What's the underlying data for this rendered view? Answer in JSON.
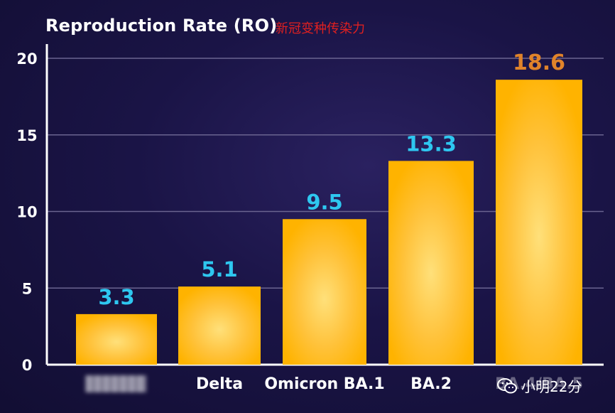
{
  "chart_data": {
    "type": "bar",
    "title": "Reproduction Rate (RO)",
    "subtitle": "新冠变种传染力",
    "categories": [
      "",
      "Delta",
      "Omicron BA.1",
      "BA.2",
      "BA.4/BA.5"
    ],
    "values": [
      3.3,
      5.1,
      9.5,
      13.3,
      18.6
    ],
    "value_labels": [
      "3.3",
      "5.1",
      "9.5",
      "13.3",
      "18.6"
    ],
    "xlabel": "",
    "ylabel": "",
    "ylim": [
      0,
      20
    ],
    "yticks": [
      0,
      5,
      10,
      15,
      20
    ],
    "grid": true,
    "legend": "none",
    "colors": {
      "bar": "#ffb300",
      "bar_glow": "#ffe07a",
      "value_label": "#2ec7f0",
      "highlight_label": "#e0832a",
      "axis": "#ffffff",
      "grid": "#6a6490"
    }
  },
  "watermark": {
    "icon": "wechat-icon",
    "text": "小明22分"
  }
}
